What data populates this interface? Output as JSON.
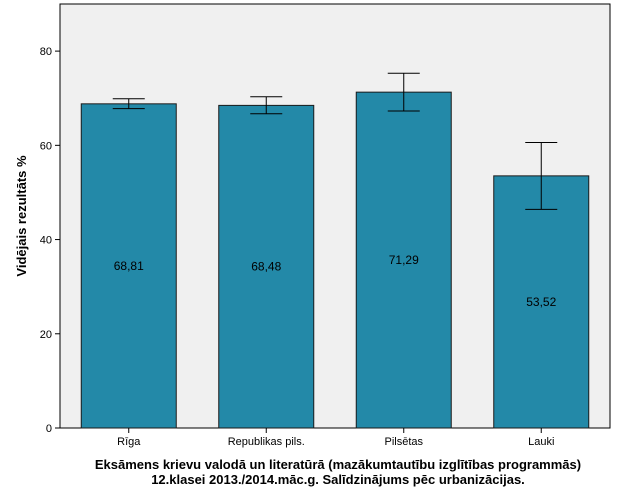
{
  "chart_data": {
    "type": "bar",
    "categories": [
      "Rīga",
      "Republikas pils.",
      "Pilsētas",
      "Lauki"
    ],
    "values": [
      68.81,
      68.48,
      71.29,
      53.52
    ],
    "value_labels": [
      "68,81",
      "68,48",
      "71,29",
      "53,52"
    ],
    "error_bars": [
      {
        "low": 67.8,
        "high": 69.9
      },
      {
        "low": 66.7,
        "high": 70.3
      },
      {
        "low": 67.3,
        "high": 75.3
      },
      {
        "low": 46.4,
        "high": 60.6
      }
    ],
    "ylabel": "Vidējais rezultāts %",
    "xlabel_lines": [
      "Eksāmens krievu valodā un literatūrā (mazākumtautību izglītības programmās)",
      "12.klasei 2013./2014.māc.g. Salīdzinājums pēc urbanizācijas."
    ],
    "ylim": [
      0,
      90
    ],
    "yticks": [
      0,
      20,
      40,
      60,
      80
    ],
    "grid": false,
    "legend": "none",
    "colors": {
      "bar_fill": "#2389a8",
      "bar_stroke": "#1a1a1a",
      "plot_background": "#f0f0f0",
      "page_background": "#ffffff"
    }
  }
}
